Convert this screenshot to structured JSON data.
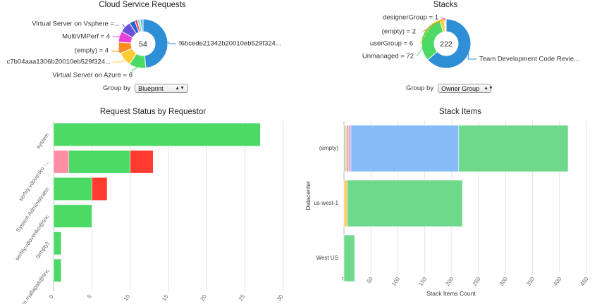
{
  "panels": {
    "cloud_requests": {
      "title": "Cloud Service Requests",
      "group_by_label": "Group by",
      "group_by_value": "Blueprint"
    },
    "stacks": {
      "title": "Stacks",
      "group_by_label": "Group by",
      "group_by_value": "Owner Group"
    },
    "request_status": {
      "title": "Request Status by Requestor"
    },
    "stack_items": {
      "title": "Stack Items"
    }
  },
  "chart_data": [
    {
      "type": "pie",
      "id": "cloud_requests",
      "title": "Cloud Service Requests",
      "center_label": "54",
      "slices": [
        {
          "label": "f6bcede21342b20010eb529f324...",
          "value": 26,
          "color": "#2f8fd6",
          "labeled": true
        },
        {
          "label": "Virtual Server on Azure = 6",
          "value": 6,
          "color": "#4cd964",
          "labeled": true
        },
        {
          "label": "c7b04aaa1306b20010eb529f324...",
          "value": 5,
          "color": "#ffcc33",
          "labeled": true
        },
        {
          "label": "(empty) = 4",
          "value": 4,
          "color": "#ff8a1f",
          "labeled": true
        },
        {
          "label": "MultiVMPerf = 4",
          "value": 4,
          "color": "#e83fd8",
          "labeled": true
        },
        {
          "label": "Virtual Server on Vsphere =...",
          "value": 4,
          "color": "#6a4fd8",
          "labeled": true
        },
        {
          "label": "",
          "value": 2,
          "color": "#2a5fd0",
          "labeled": false
        },
        {
          "label": "",
          "value": 1,
          "color": "#e84c3d",
          "labeled": false
        },
        {
          "label": "",
          "value": 1,
          "color": "#9ad0f5",
          "labeled": false
        },
        {
          "label": "",
          "value": 1,
          "color": "#5bc0de",
          "labeled": false
        }
      ]
    },
    {
      "type": "pie",
      "id": "stacks",
      "title": "Stacks",
      "center_label": "222",
      "slices": [
        {
          "label": "Team Development Code Revie...",
          "value": 141,
          "color": "#2f8fd6",
          "labeled": true
        },
        {
          "label": "Unmanaged = 72",
          "value": 72,
          "color": "#4cd964",
          "labeled": true
        },
        {
          "label": "userGroup = 6",
          "value": 6,
          "color": "#ffcc33",
          "labeled": true
        },
        {
          "label": "(empty) = 2",
          "value": 2,
          "color": "#ff8a1f",
          "labeled": true
        },
        {
          "label": "designerGroup = 1",
          "value": 1,
          "color": "#e83fd8",
          "labeled": true
        }
      ]
    },
    {
      "type": "bar",
      "id": "request_status",
      "orientation": "horizontal",
      "stacked": true,
      "title": "Request Status by Requestor",
      "categories": [
        "system",
        "serhiy.vdovenko -...",
        "System Administrator",
        "serhiy.vdovenko@snc",
        "(empty)",
        "sam.mallapas@snc"
      ],
      "series": [
        {
          "values": [
            0,
            2,
            0,
            0,
            0,
            0
          ],
          "color": "#ff8fa3"
        },
        {
          "values": [
            27,
            8,
            5,
            5,
            1,
            1
          ],
          "color": "#4cd964"
        },
        {
          "values": [
            0,
            3,
            2,
            0,
            0,
            0
          ],
          "color": "#ff3b30"
        }
      ],
      "xlim": [
        0,
        30
      ],
      "x_ticks": [
        "0",
        "5",
        "10",
        "15",
        "20",
        "25",
        "30"
      ],
      "grid": true
    },
    {
      "type": "bar",
      "id": "stack_items",
      "orientation": "horizontal",
      "stacked": true,
      "title": "Stack Items",
      "categories": [
        "(empty)",
        "us-west-1",
        "West US"
      ],
      "series": [
        {
          "values": [
            2,
            0,
            0
          ],
          "color": "#5bc0de"
        },
        {
          "values": [
            3,
            6,
            0
          ],
          "color": "#ffcc66"
        },
        {
          "values": [
            4,
            0,
            0
          ],
          "color": "#f3a0b5"
        },
        {
          "values": [
            4,
            0,
            0
          ],
          "color": "#c9a6e8"
        },
        {
          "values": [
            200,
            0,
            0
          ],
          "color": "#86bdf7"
        },
        {
          "values": [
            203,
            214,
            20
          ],
          "color": "#6ed98a"
        }
      ],
      "xlim": [
        0,
        450
      ],
      "x_ticks": [
        "0",
        "50",
        "100",
        "150",
        "200",
        "250",
        "300",
        "350",
        "400",
        "450"
      ],
      "xlabel": "Stack Items Count",
      "ylabel": "Datacenter",
      "grid": true
    }
  ]
}
